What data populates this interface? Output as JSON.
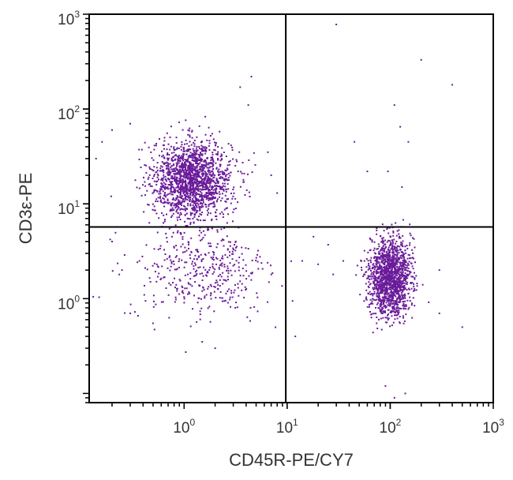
{
  "chart_data": {
    "type": "scatter",
    "title": "",
    "xlabel": "CD45R-PE/CY7",
    "ylabel": "CD3ε-PE",
    "x_scale": "log",
    "y_scale": "log",
    "xlim": [
      0.12,
      1000
    ],
    "ylim": [
      0.08,
      1000
    ],
    "grid": false,
    "x_ticks": [
      {
        "value": 1,
        "base": "10",
        "exp": "0"
      },
      {
        "value": 10,
        "base": "10",
        "exp": "1"
      },
      {
        "value": 100,
        "base": "10",
        "exp": "2"
      },
      {
        "value": 1000,
        "base": "10",
        "exp": "3"
      }
    ],
    "y_ticks": [
      {
        "value": 1,
        "base": "10",
        "exp": "0"
      },
      {
        "value": 10,
        "base": "10",
        "exp": "1"
      },
      {
        "value": 100,
        "base": "10",
        "exp": "2"
      },
      {
        "value": 1000,
        "base": "10",
        "exp": "3"
      }
    ],
    "quadrant_gate": {
      "x": 9.7,
      "y": 5.7
    },
    "point_color": "#6a1b9a",
    "populations": [
      {
        "center": [
          1.2,
          18
        ],
        "spread": [
          0.19,
          0.2
        ],
        "count": 1700
      },
      {
        "center": [
          1.5,
          1.9
        ],
        "spread": [
          0.33,
          0.26
        ],
        "count": 420
      },
      {
        "center": [
          100,
          1.7
        ],
        "spread": [
          0.1,
          0.2
        ],
        "count": 1550
      }
    ],
    "sparse_events": [
      [
        4.5,
        220
      ],
      [
        3.5,
        170
      ],
      [
        4.2,
        110
      ],
      [
        30,
        780
      ],
      [
        200,
        330
      ],
      [
        400,
        180
      ],
      [
        110,
        110
      ],
      [
        125,
        65
      ],
      [
        150,
        45
      ],
      [
        45,
        45
      ],
      [
        60,
        22
      ],
      [
        95,
        22
      ],
      [
        130,
        15
      ],
      [
        0.2,
        60
      ],
      [
        0.16,
        45
      ],
      [
        0.14,
        30
      ],
      [
        0.3,
        70
      ],
      [
        7,
        20
      ],
      [
        8,
        13
      ],
      [
        6.5,
        35
      ],
      [
        0.2,
        4
      ],
      [
        0.25,
        2
      ],
      [
        14,
        2.5
      ],
      [
        20,
        2.3
      ],
      [
        28,
        1.8
      ],
      [
        35,
        2.5
      ],
      [
        25,
        3.7
      ],
      [
        18,
        4.5
      ],
      [
        110,
        0.09
      ],
      [
        140,
        0.1
      ],
      [
        90,
        0.12
      ],
      [
        500,
        0.5
      ],
      [
        300,
        0.7
      ],
      [
        300,
        2.0
      ],
      [
        12,
        0.4
      ],
      [
        2,
        0.3
      ],
      [
        1.5,
        0.35
      ],
      [
        0.3,
        0.7
      ],
      [
        0.5,
        0.55
      ]
    ]
  }
}
